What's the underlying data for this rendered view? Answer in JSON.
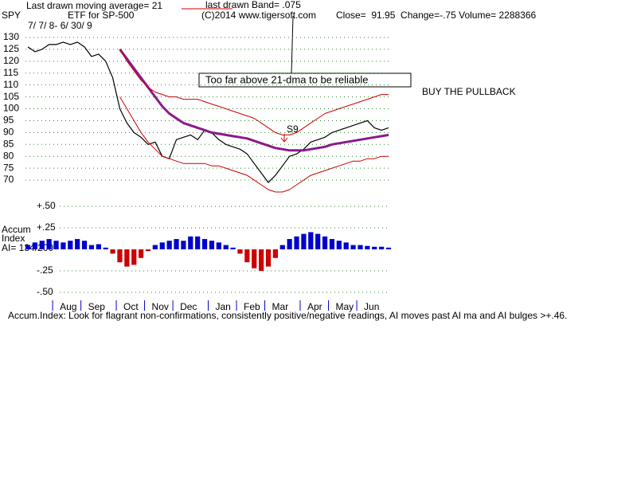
{
  "header": {
    "symbol": "SPY",
    "ma_note": "Last drawn moving average= 21",
    "band_note": "last drawn Band= .075",
    "subtitle": "ETF for SP-500",
    "copyright": "(C)2014 www.tigersoft.com",
    "quote": "Close=  91.95  Change=-.75 Volume= 2288366",
    "date_range": "7/ 7/ 8- 6/ 30/ 9"
  },
  "chart_data": [
    {
      "type": "line",
      "ylim": [
        65,
        132
      ],
      "yticks": [
        130,
        125,
        120,
        115,
        110,
        105,
        100,
        95,
        90,
        85,
        80,
        75,
        70
      ],
      "grid": true,
      "annotations": {
        "warning": "Too far above 21-dma to be reliable",
        "advice": "BUY THE PULLBACK",
        "signal": "S9"
      },
      "series": [
        {
          "color": "#000000",
          "values": [
            126,
            124,
            125,
            127,
            127,
            128,
            127,
            128,
            126,
            122,
            123,
            120,
            113,
            100,
            94,
            90,
            88,
            85,
            86,
            80,
            79,
            87,
            88,
            89,
            87,
            91,
            90,
            87,
            85,
            84,
            83,
            81,
            77,
            73,
            69,
            72,
            76,
            80,
            81,
            83,
            86,
            87,
            88,
            90,
            91,
            92,
            93,
            94,
            95,
            92,
            91,
            92
          ]
        },
        {
          "color": "#8b1a8b",
          "width": 3,
          "values": [
            null,
            null,
            null,
            null,
            null,
            null,
            null,
            null,
            null,
            null,
            null,
            null,
            null,
            125,
            121,
            117,
            113,
            109,
            105,
            101,
            98,
            96,
            94,
            93,
            92,
            91,
            90,
            89.5,
            89,
            88.5,
            88,
            87.5,
            86.5,
            85.5,
            84.5,
            83.5,
            83,
            82.5,
            82.5,
            82.5,
            83,
            83.5,
            84,
            85,
            85.5,
            86,
            86.5,
            87,
            87.5,
            88,
            88.5,
            89
          ]
        },
        {
          "color": "#cc0000",
          "width": 1,
          "values": [
            null,
            null,
            null,
            null,
            null,
            null,
            null,
            null,
            null,
            null,
            null,
            null,
            null,
            125,
            120,
            116,
            112,
            109,
            107,
            106,
            105,
            105,
            104,
            104,
            104,
            103,
            102,
            101,
            100,
            99,
            98,
            97,
            96,
            94,
            92,
            90,
            89,
            89,
            90,
            92,
            94,
            96,
            98,
            99,
            100,
            101,
            102,
            103,
            104,
            105,
            106,
            106
          ]
        },
        {
          "color": "#cc0000",
          "width": 1,
          "values": [
            null,
            null,
            null,
            null,
            null,
            null,
            null,
            null,
            null,
            null,
            null,
            null,
            null,
            105,
            100,
            95,
            90,
            86,
            83,
            80,
            79,
            78,
            77,
            77,
            77,
            77,
            76,
            76,
            75,
            74,
            73,
            72,
            70,
            68,
            66,
            65,
            65,
            66,
            68,
            70,
            72,
            73,
            74,
            75,
            76,
            77,
            78,
            78,
            79,
            79,
            80,
            80
          ]
        }
      ]
    },
    {
      "type": "bar",
      "label_lines": [
        "Accum",
        "Index",
        "AI= 134/200"
      ],
      "ylim": [
        -0.55,
        0.55
      ],
      "yticks": [
        {
          "value": 0.5,
          "label": "+.50"
        },
        {
          "value": 0.25,
          "label": "+.25"
        },
        {
          "value": -0.25,
          "label": "-.25"
        },
        {
          "value": -0.5,
          "label": "-.50"
        }
      ],
      "grid": true,
      "pos_color": "#0000cc",
      "neg_color": "#cc0000",
      "categories": [
        null,
        null,
        null,
        null,
        "Aug",
        null,
        null,
        null,
        "Sep",
        null,
        null,
        null,
        null,
        "Oct",
        null,
        null,
        null,
        "Nov",
        null,
        null,
        null,
        "Dec",
        null,
        null,
        null,
        null,
        "Jan",
        null,
        null,
        null,
        "Feb",
        null,
        null,
        null,
        "Mar",
        null,
        null,
        null,
        null,
        "Apr",
        null,
        null,
        null,
        "May",
        null,
        null,
        null,
        "Jun",
        null,
        null,
        null,
        null
      ],
      "values": [
        0.05,
        0.08,
        0.1,
        0.12,
        0.1,
        0.08,
        0.1,
        0.12,
        0.1,
        0.05,
        0.06,
        0.02,
        -0.05,
        -0.15,
        -0.2,
        -0.18,
        -0.1,
        -0.02,
        0.05,
        0.08,
        0.1,
        0.12,
        0.1,
        0.15,
        0.15,
        0.12,
        0.1,
        0.08,
        0.05,
        0.02,
        -0.05,
        -0.15,
        -0.22,
        -0.25,
        -0.2,
        -0.1,
        0.05,
        0.12,
        0.15,
        0.18,
        0.2,
        0.18,
        0.15,
        0.12,
        0.1,
        0.08,
        0.05,
        0.05,
        0.04,
        0.03,
        0.03,
        0.02
      ],
      "footer": "Accum.Index: Look for flagrant non-confirmations, consistently positive/negative readings, AI moves past AI ma and AI bulges >+.46."
    }
  ]
}
